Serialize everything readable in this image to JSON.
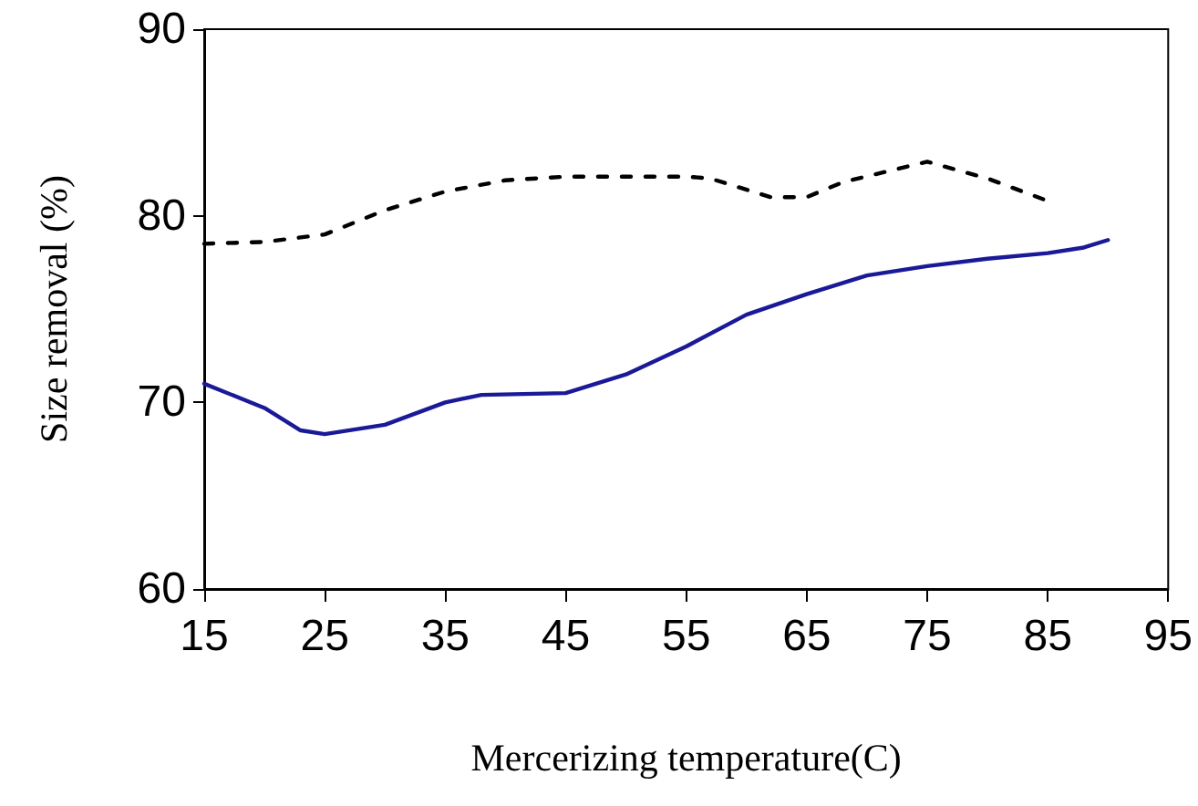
{
  "chart_data": {
    "type": "line",
    "xlabel": "Mercerizing temperature(C)",
    "ylabel": "Size removal (%)",
    "xlim": [
      15,
      95
    ],
    "xticks": [
      15,
      25,
      35,
      45,
      55,
      65,
      75,
      85,
      95
    ],
    "ylim": [
      60,
      90
    ],
    "yticks": [
      60,
      70,
      80,
      90
    ],
    "grid": false,
    "marker": "none",
    "series": [
      {
        "color": "#1a1a99",
        "line_style": "solid",
        "x": [
          15,
          20,
          23,
          25,
          30,
          35,
          38,
          45,
          50,
          55,
          60,
          65,
          70,
          75,
          80,
          85,
          88,
          90
        ],
        "values": [
          71,
          69.7,
          68.5,
          68.3,
          68.8,
          70,
          70.4,
          70.5,
          71.5,
          73,
          74.7,
          75.8,
          76.8,
          77.3,
          77.7,
          78,
          78.3,
          78.7
        ]
      },
      {
        "color": "#000000",
        "line_style": "dashed",
        "x": [
          15,
          20,
          25,
          30,
          35,
          40,
          45,
          55,
          57,
          62,
          65,
          68,
          75,
          80,
          85
        ],
        "values": [
          78.5,
          78.6,
          79,
          80.3,
          81.3,
          81.9,
          82.1,
          82.1,
          82,
          81,
          81,
          81.8,
          82.9,
          82,
          80.8
        ]
      }
    ]
  }
}
